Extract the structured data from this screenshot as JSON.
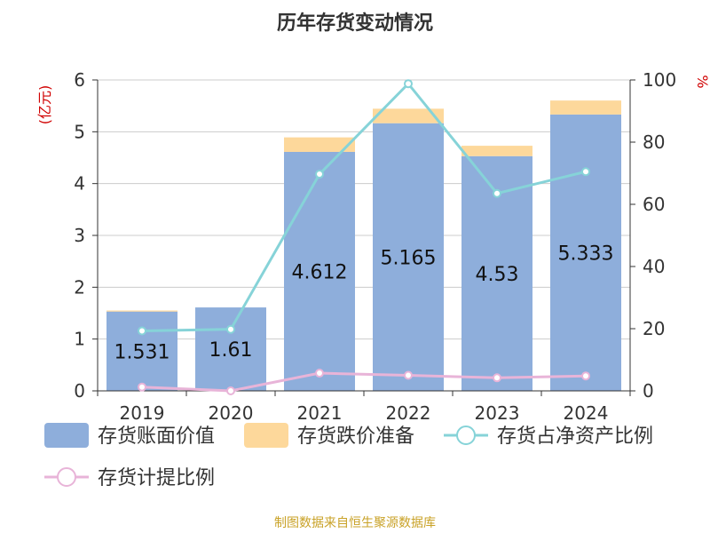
{
  "chart_data": {
    "type": "bar",
    "title": "历年存货变动情况",
    "left_axis_label": "(亿元)",
    "right_axis_label": "%",
    "categories": [
      "2019",
      "2020",
      "2021",
      "2022",
      "2023",
      "2024"
    ],
    "left_ylim": [
      0,
      6
    ],
    "left_ticks": [
      "0",
      "1",
      "2",
      "3",
      "4",
      "5",
      "6"
    ],
    "right_ylim": [
      0,
      100
    ],
    "right_ticks": [
      "0",
      "20",
      "40",
      "60",
      "80",
      "100"
    ],
    "grid": true,
    "legend_position": "bottom",
    "series": [
      {
        "name": "存货账面价值",
        "kind": "bar",
        "axis": "left",
        "color": "#8eaedb",
        "values": [
          1.531,
          1.61,
          4.612,
          5.165,
          4.53,
          5.333
        ],
        "value_labels": [
          "1.531",
          "1.61",
          "4.612",
          "5.165",
          "4.53",
          "5.333"
        ]
      },
      {
        "name": "存货跌价准备",
        "kind": "bar-stacked",
        "axis": "left",
        "color": "#fdd89b",
        "values": [
          0.02,
          0.0,
          0.28,
          0.28,
          0.2,
          0.27
        ]
      },
      {
        "name": "存货占净资产比例",
        "kind": "line",
        "axis": "right",
        "color": "#86d3d8",
        "values": [
          19.3,
          19.8,
          69.7,
          98.8,
          63.5,
          70.5
        ]
      },
      {
        "name": "存货计提比例",
        "kind": "line",
        "axis": "right",
        "color": "#e8b4d8",
        "values": [
          1.2,
          0.0,
          5.7,
          5.0,
          4.2,
          4.8
        ]
      }
    ],
    "source": "制图数据来自恒生聚源数据库"
  }
}
